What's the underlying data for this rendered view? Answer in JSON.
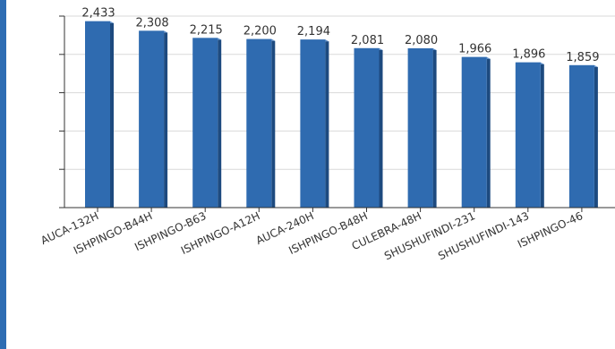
{
  "colors": {
    "bar_front": "#2f6bb0",
    "bar_side": "#1d4a7f",
    "bar_top": "#5c8fcc",
    "grid": "#d9d9d9",
    "axis": "#333333",
    "frame": "#2e6db3"
  },
  "chart_data": {
    "type": "bar",
    "categories": [
      "AUCA-132H",
      "ISHPINGO-B44H",
      "ISHPINGO-B63",
      "ISHPINGO-A12H",
      "AUCA-240H",
      "ISHPINGO-B48H",
      "CULEBRA-48H",
      "SHUSHUFINDI-231",
      "SHUSHUFINDI-143",
      "ISHPINGO-46"
    ],
    "values": [
      2433,
      2308,
      2215,
      2200,
      2194,
      2081,
      2080,
      1966,
      1896,
      1859
    ],
    "data_labels": [
      "2,433",
      "2,308",
      "2,215",
      "2,200",
      "2,194",
      "2,081",
      "2,080",
      "1,966",
      "1,896",
      "1,859"
    ],
    "ylim": [
      0,
      2500
    ],
    "grid": true,
    "style": "3d"
  }
}
